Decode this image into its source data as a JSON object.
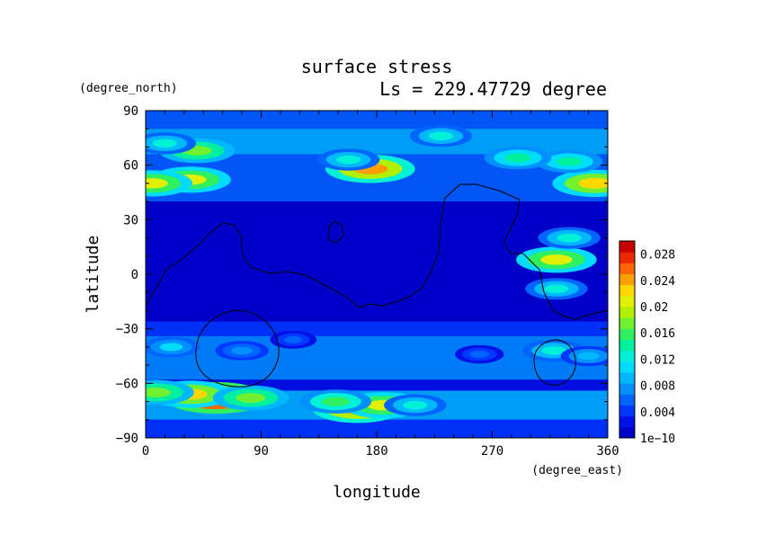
{
  "chart_data": {
    "type": "heatmap",
    "title": "surface stress",
    "subtitle": "Ls = 229.47729 degree",
    "xlabel": "longitude",
    "ylabel": "latitude",
    "x_units": "(degree_east)",
    "y_units": "(degree_north)",
    "xlim": [
      0,
      360
    ],
    "ylim": [
      -90,
      90
    ],
    "x_ticks": [
      "0",
      "90",
      "180",
      "270",
      "360"
    ],
    "y_ticks": [
      "90",
      "60",
      "30",
      "0",
      "−30",
      "−60",
      "−90"
    ],
    "colorbar": {
      "min": 0,
      "max": 0.03,
      "tick_labels": [
        "1e−10",
        "0.004",
        "0.008",
        "0.012",
        "0.016",
        "0.02",
        "0.024",
        "0.028"
      ],
      "colors": [
        "#0000c8",
        "#0010e6",
        "#0038ff",
        "#0064ff",
        "#0090ff",
        "#00b8ff",
        "#00dcff",
        "#00f0d8",
        "#00f0a0",
        "#30f060",
        "#70f030",
        "#b0f000",
        "#e0f000",
        "#ffd800",
        "#ffa000",
        "#ff6400",
        "#f02800",
        "#c80000"
      ]
    },
    "features": [
      {
        "lon": 55,
        "lat": -68,
        "value": 0.032
      },
      {
        "lon": 35,
        "lat": -66,
        "value": 0.022
      },
      {
        "lon": 82,
        "lat": -68,
        "value": 0.018
      },
      {
        "lon": 8,
        "lat": -65,
        "value": 0.018
      },
      {
        "lon": 165,
        "lat": -74,
        "value": 0.024
      },
      {
        "lon": 185,
        "lat": -72,
        "value": 0.02
      },
      {
        "lon": 148,
        "lat": -70,
        "value": 0.016
      },
      {
        "lon": 210,
        "lat": -72,
        "value": 0.012
      },
      {
        "lon": 175,
        "lat": 58,
        "value": 0.024
      },
      {
        "lon": 158,
        "lat": 63,
        "value": 0.012
      },
      {
        "lon": 40,
        "lat": 68,
        "value": 0.018
      },
      {
        "lon": 15,
        "lat": 72,
        "value": 0.012
      },
      {
        "lon": 35,
        "lat": 52,
        "value": 0.02
      },
      {
        "lon": 5,
        "lat": 50,
        "value": 0.02
      },
      {
        "lon": 350,
        "lat": 50,
        "value": 0.022
      },
      {
        "lon": 330,
        "lat": 62,
        "value": 0.014
      },
      {
        "lon": 290,
        "lat": 64,
        "value": 0.014
      },
      {
        "lon": 230,
        "lat": 76,
        "value": 0.012
      },
      {
        "lon": 320,
        "lat": 8,
        "value": 0.02
      },
      {
        "lon": 330,
        "lat": 20,
        "value": 0.012
      },
      {
        "lon": 320,
        "lat": -8,
        "value": 0.012
      },
      {
        "lon": 318,
        "lat": -42,
        "value": 0.012
      },
      {
        "lon": 345,
        "lat": -45,
        "value": 0.009
      },
      {
        "lon": 20,
        "lat": -40,
        "value": 0.01
      },
      {
        "lon": 75,
        "lat": -42,
        "value": 0.008
      },
      {
        "lon": 115,
        "lat": -36,
        "value": 0.005
      },
      {
        "lon": 260,
        "lat": -44,
        "value": 0.006
      }
    ]
  }
}
